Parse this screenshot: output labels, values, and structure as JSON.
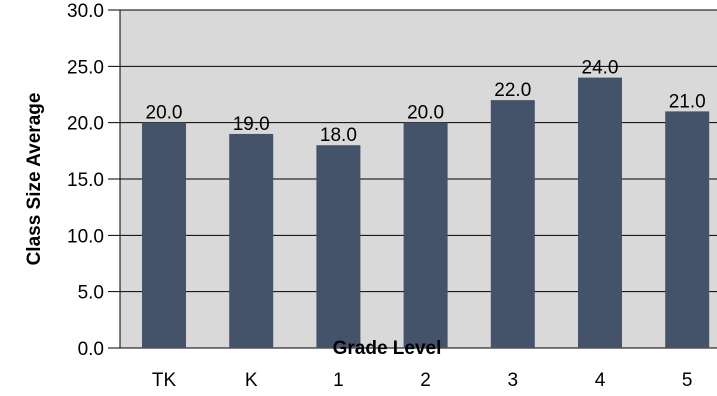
{
  "chart_data": {
    "type": "bar",
    "categories": [
      "TK",
      "K",
      "1",
      "2",
      "3",
      "4",
      "5"
    ],
    "values": [
      20.0,
      19.0,
      18.0,
      20.0,
      22.0,
      24.0,
      21.0
    ],
    "data_labels": [
      "20.0",
      "19.0",
      "18.0",
      "20.0",
      "22.0",
      "24.0",
      "21.0"
    ],
    "title": "",
    "xlabel": "Grade Level",
    "ylabel": "Class Size Average",
    "ylim": [
      0,
      30
    ],
    "yticks": [
      0,
      5,
      10,
      15,
      20,
      25,
      30
    ],
    "ytick_labels": [
      "0.0",
      "5.0",
      "10.0",
      "15.0",
      "20.0",
      "25.0",
      "30.0"
    ],
    "grid": true,
    "legend": "none",
    "colors": {
      "bar": "#44536a",
      "plot_background": "#d9d9d9",
      "gridline": "#000000"
    }
  }
}
